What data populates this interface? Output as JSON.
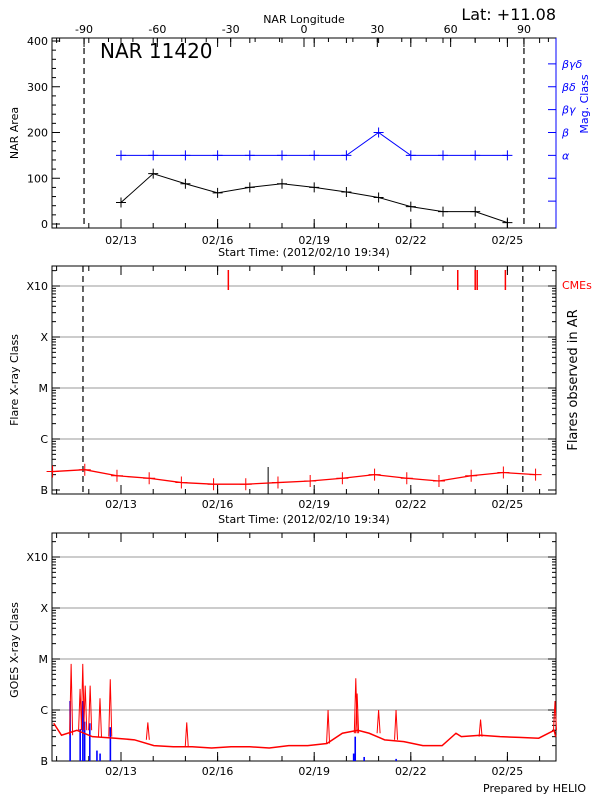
{
  "header": {
    "lat_label": "Lat: +11.08",
    "region_label": "NAR 11420",
    "prepared_by": "Prepared by HELIO"
  },
  "colors": {
    "area": "#000000",
    "mag_class": "#0000ff",
    "flares": "#ff0000",
    "cme": "#ff0000",
    "goes": "#ff0000",
    "goes_events": "#0000ff",
    "grid": "#999999"
  },
  "chart_data": [
    {
      "type": "line",
      "title": "NAR 11420",
      "xlabel": "Start Time: (2012/02/10 19:34)",
      "ylabel": "NAR Area",
      "y2label": "Mag. Class",
      "top_xlabel": "NAR Longitude",
      "top_xticks": [
        "-90",
        "-60",
        "-30",
        "0",
        "30",
        "60",
        "90"
      ],
      "top_xtick_values": [
        -90,
        -60,
        -30,
        0,
        30,
        60,
        90
      ],
      "xticks": [
        "02/13",
        "02/16",
        "02/19",
        "02/22",
        "02/25"
      ],
      "xtick_dates": [
        "2012-02-13",
        "2012-02-16",
        "2012-02-19",
        "2012-02-22",
        "2012-02-25"
      ],
      "ylim": [
        0,
        400
      ],
      "yticks": [
        "0",
        "100",
        "200",
        "300",
        "400"
      ],
      "y2ticks": [
        "α",
        "β",
        "βγ",
        "βδ",
        "βγδ"
      ],
      "limb_longitudes": [
        -90,
        90
      ],
      "x": [
        "2012-02-13",
        "2012-02-14",
        "2012-02-15",
        "2012-02-16",
        "2012-02-17",
        "2012-02-18",
        "2012-02-19",
        "2012-02-20",
        "2012-02-21",
        "2012-02-22",
        "2012-02-23",
        "2012-02-24",
        "2012-02-25"
      ],
      "series": [
        {
          "values": [
            47,
            110,
            88,
            68,
            80,
            88,
            80,
            70,
            58,
            38,
            27,
            27,
            3
          ]
        },
        {
          "values": [
            "α",
            "α",
            "α",
            "α",
            "α",
            "α",
            "α",
            "α",
            "β",
            "α",
            "α",
            "α",
            "α"
          ]
        }
      ]
    },
    {
      "type": "line",
      "xlabel": "Start Time: (2012/02/10 19:34)",
      "ylabel": "Flare X-ray Class",
      "y2label": "Flares observed in AR",
      "cme_label": "CMEs",
      "yscale": "log",
      "ylim": [
        1e-07,
        0.003
      ],
      "yticks": [
        "B",
        "C",
        "M",
        "X",
        "X10"
      ],
      "ytick_values": [
        1e-07,
        1e-06,
        1e-05,
        0.0001,
        0.001
      ],
      "grid": true,
      "xticks": [
        "02/13",
        "02/16",
        "02/19",
        "02/22",
        "02/25"
      ],
      "limb_times": [
        "2012-02-11T19:40",
        "2012-02-25T11:30"
      ],
      "x": [
        "2012-02-10T21:00",
        "2012-02-11T21:00",
        "2012-02-12T21:00",
        "2012-02-13T21:00",
        "2012-02-14T21:00",
        "2012-02-15T21:00",
        "2012-02-16T21:00",
        "2012-02-17T21:00",
        "2012-02-18T21:00",
        "2012-02-19T21:00",
        "2012-02-20T21:00",
        "2012-02-21T21:00",
        "2012-02-22T21:00",
        "2012-02-23T21:00",
        "2012-02-24T21:00",
        "2012-02-25T21:00"
      ],
      "series": [
        {
          "values": [
            2.3e-07,
            2.5e-07,
            1.9e-07,
            1.7e-07,
            1.4e-07,
            1.3e-07,
            1.3e-07,
            1.4e-07,
            1.5e-07,
            1.7e-07,
            2e-07,
            1.7e-07,
            1.5e-07,
            1.9e-07,
            2.2e-07,
            2e-07
          ]
        }
      ],
      "flare_marker": {
        "time": "2012-02-17T13:40",
        "flux": 1.6e-07
      },
      "cmes": [
        "2012-02-16T08:00",
        "2012-02-23T11:00",
        "2012-02-24T00:00",
        "2012-02-24T01:30",
        "2012-02-24T22:30"
      ]
    },
    {
      "type": "line",
      "ylabel": "GOES X-ray Class",
      "yscale": "log",
      "ylim": [
        1e-07,
        0.003
      ],
      "yticks": [
        "B",
        "C",
        "M",
        "X",
        "X10"
      ],
      "ytick_values": [
        1e-07,
        1e-06,
        1e-05,
        0.0001,
        0.001
      ],
      "grid": true,
      "xticks": [
        "02/13",
        "02/16",
        "02/19",
        "02/22",
        "02/25"
      ],
      "x": [
        "2012-02-10T21:50",
        "2012-02-11T03:40",
        "2012-02-11T15:10",
        "2012-02-12T02:40",
        "2012-02-12T20:00",
        "2012-02-13T10:00",
        "2012-02-14T00:30",
        "2012-02-14T15:00",
        "2012-02-15T05:00",
        "2012-02-15T19:30",
        "2012-02-16T10:00",
        "2012-02-17T00:00",
        "2012-02-17T14:30",
        "2012-02-18T05:00",
        "2012-02-18T19:10",
        "2012-02-19T09:30",
        "2012-02-19T21:00",
        "2012-02-20T08:30",
        "2012-02-20T17:00",
        "2012-02-21T04:30",
        "2012-02-21T18:50",
        "2012-02-22T09:00",
        "2012-02-22T23:20",
        "2012-02-23T09:40",
        "2012-02-23T13:40",
        "2012-02-24T04:00",
        "2012-02-24T18:30",
        "2012-02-25T08:40",
        "2012-02-25T23:20",
        "2012-02-26T10:50",
        "2012-02-26T12:00"
      ],
      "series": [
        {
          "values": [
            5.5e-07,
            3.2e-07,
            4e-07,
            3e-07,
            2.8e-07,
            2.6e-07,
            2e-07,
            1.9e-07,
            1.9e-07,
            1.8e-07,
            1.9e-07,
            1.9e-07,
            1.8e-07,
            2e-07,
            2e-07,
            2.2e-07,
            3.5e-07,
            4e-07,
            3.5e-07,
            2.6e-07,
            2.4e-07,
            2e-07,
            2e-07,
            3.5e-07,
            3e-07,
            3.2e-07,
            3e-07,
            2.9e-07,
            2.8e-07,
            4e-07,
            3e-07
          ]
        }
      ],
      "peaks": [
        {
          "time": "2012-02-11T10:50",
          "flux": 8e-06
        },
        {
          "time": "2012-02-11T17:30",
          "flux": 2.6e-06
        },
        {
          "time": "2012-02-11T19:30",
          "flux": 8e-06
        },
        {
          "time": "2012-02-11T21:20",
          "flux": 3e-06
        },
        {
          "time": "2012-02-12T01:00",
          "flux": 3e-06
        },
        {
          "time": "2012-02-12T08:20",
          "flux": 1.7e-06
        },
        {
          "time": "2012-02-12T16:00",
          "flux": 4e-06
        },
        {
          "time": "2012-02-13T20:00",
          "flux": 5.7e-07
        },
        {
          "time": "2012-02-15T01:00",
          "flux": 5.7e-07
        },
        {
          "time": "2012-02-19T10:20",
          "flux": 1e-06
        },
        {
          "time": "2012-02-20T07:00",
          "flux": 4.2e-06
        },
        {
          "time": "2012-02-20T08:00",
          "flux": 2.1e-06
        },
        {
          "time": "2012-02-21T00:00",
          "flux": 1e-06
        },
        {
          "time": "2012-02-21T13:00",
          "flux": 1e-06
        },
        {
          "time": "2012-02-24T04:00",
          "flux": 6.5e-07
        },
        {
          "time": "2012-02-26T12:00",
          "flux": 1.5e-06
        }
      ],
      "events": [
        {
          "time": "2012-02-11T10:00",
          "flux": 1.5e-06
        },
        {
          "time": "2012-02-11T17:30",
          "flux": 4.2e-07
        },
        {
          "time": "2012-02-11T19:30",
          "flux": 1.5e-06
        },
        {
          "time": "2012-02-11T20:50",
          "flux": 5.9e-07
        },
        {
          "time": "2012-02-12T00:40",
          "flux": 5.5e-07
        },
        {
          "time": "2012-02-12T06:00",
          "flux": 1.6e-07
        },
        {
          "time": "2012-02-12T08:20",
          "flux": 1.4e-07
        },
        {
          "time": "2012-02-12T16:00",
          "flux": 4.6e-07
        },
        {
          "time": "2012-02-20T05:20",
          "flux": 1.4e-07
        },
        {
          "time": "2012-02-20T06:30",
          "flux": 3e-07
        },
        {
          "time": "2012-02-20T13:10",
          "flux": 1.2e-07
        },
        {
          "time": "2012-02-21T13:00",
          "flux": 1.1e-07
        }
      ]
    }
  ]
}
